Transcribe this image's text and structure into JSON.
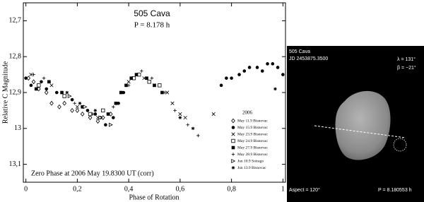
{
  "chart_data": {
    "type": "scatter",
    "title": "505 Cava",
    "subtitle": "P = 8.178 h",
    "annotation": "Zero Phase at 2006 May 19.8300 UT (corr)",
    "x_label": "Phase of Rotation",
    "y_label": "Relative C Magnitude",
    "legend_title": "2006",
    "xlim": [
      -0.01,
      1.01
    ],
    "ylim": [
      13.15,
      12.65
    ],
    "xticks": [
      {
        "value": 0,
        "label": "0"
      },
      {
        "value": 0.2,
        "label": "0,2"
      },
      {
        "value": 0.4,
        "label": "0,4"
      },
      {
        "value": 0.6,
        "label": "0,6"
      },
      {
        "value": 0.8,
        "label": "0,8"
      },
      {
        "value": 1,
        "label": "1"
      }
    ],
    "yticks": [
      {
        "value": 12.7,
        "label": "12,7"
      },
      {
        "value": 12.8,
        "label": "12,8"
      },
      {
        "value": 12.9,
        "label": "12,9"
      },
      {
        "value": 13,
        "label": "13"
      },
      {
        "value": 13.1,
        "label": "13,1"
      }
    ],
    "series": [
      {
        "name": "May 11.9 Bisnovac",
        "color": "#000000",
        "marker": "diamond-open",
        "x": [
          0.01,
          0.03,
          0.05,
          0.08,
          0.1,
          0.13,
          0.15,
          0.18,
          0.2,
          0.22,
          0.25,
          0.28,
          0.3,
          0.33
        ],
        "values": [
          12.86,
          12.87,
          12.89,
          12.9,
          12.93,
          12.94,
          12.93,
          12.95,
          12.95,
          12.96,
          12.97,
          12.98,
          12.97,
          12.96
        ]
      },
      {
        "name": "May 15.9 Bisnovac",
        "color": "#000000",
        "marker": "circle",
        "x": [
          0.0,
          0.02,
          0.06,
          0.08,
          0.12,
          0.18,
          0.24,
          0.27,
          0.29,
          0.31,
          0.34,
          0.36,
          0.38,
          0.76,
          0.78,
          0.8,
          0.83,
          0.85,
          0.87,
          0.9,
          0.92,
          0.94,
          0.96,
          0.98,
          1.0
        ],
        "values": [
          12.86,
          12.88,
          12.87,
          12.89,
          12.9,
          12.92,
          12.95,
          12.96,
          12.97,
          12.99,
          12.97,
          12.93,
          12.9,
          12.88,
          12.86,
          12.86,
          12.85,
          12.84,
          12.83,
          12.83,
          12.84,
          12.82,
          12.82,
          12.83,
          12.85
        ]
      },
      {
        "name": "May 23.9 Bisnovac",
        "color": "#000000",
        "marker": "x",
        "x": [
          0.02,
          0.1,
          0.2,
          0.28,
          0.4,
          0.46,
          0.5,
          0.55,
          0.57,
          0.6,
          0.62,
          0.73
        ],
        "values": [
          12.85,
          12.88,
          12.94,
          12.97,
          12.87,
          12.86,
          12.88,
          12.9,
          12.93,
          12.96,
          12.97,
          12.96
        ]
      },
      {
        "name": "May 24.9 Bisnovac",
        "color": "#000000",
        "marker": "square-open",
        "x": [
          0.05,
          0.15,
          0.25,
          0.3,
          0.42,
          0.44,
          0.48,
          0.52
        ],
        "values": [
          12.88,
          12.91,
          12.96,
          12.95,
          12.86,
          12.85,
          12.87,
          12.88
        ]
      },
      {
        "name": "May 27.9 Bisnovac",
        "color": "#000000",
        "marker": "square",
        "x": [
          0.04,
          0.09,
          0.14,
          0.22,
          0.32,
          0.35,
          0.37,
          0.39,
          0.41,
          0.43,
          0.47,
          0.5,
          0.53
        ],
        "values": [
          12.89,
          12.87,
          12.9,
          12.94,
          12.96,
          12.93,
          12.9,
          12.88,
          12.86,
          12.85,
          12.86,
          12.88,
          12.9
        ]
      },
      {
        "name": "May 28.9 Bisnovac",
        "color": "#000000",
        "marker": "plus",
        "x": [
          0,
          0.03,
          0.07,
          0.12,
          0.19,
          0.26,
          0.34,
          0.4,
          0.45,
          0.49,
          0.54,
          0.58,
          0.63,
          0.67
        ],
        "values": [
          12.86,
          12.85,
          12.86,
          12.9,
          12.93,
          12.96,
          12.94,
          12.88,
          12.84,
          12.86,
          12.9,
          12.95,
          12.99,
          13.02
        ]
      },
      {
        "name": "Jun 10.9 Sotrago",
        "color": "#000000",
        "marker": "triangle-open",
        "x": [
          0.17,
          0.23,
          0.29,
          0.33
        ],
        "values": [
          12.91,
          12.94,
          12.97,
          12.99
        ]
      },
      {
        "name": "Jun 13.9 Bisnovac",
        "color": "#000000",
        "marker": "asterisk",
        "x": [
          0.09,
          0.16,
          0.21,
          0.27,
          0.6,
          0.65,
          0.97
        ],
        "values": [
          12.87,
          12.9,
          12.93,
          12.95,
          12.97,
          13,
          12.89
        ]
      }
    ]
  },
  "model_view": {
    "name": "505 Cava",
    "epoch": "JD 2453875.3500",
    "lambda": "λ = 131°",
    "beta": "β = −21°",
    "aspect": "Aspect = 120°",
    "period": "P = 8.180553 h"
  }
}
